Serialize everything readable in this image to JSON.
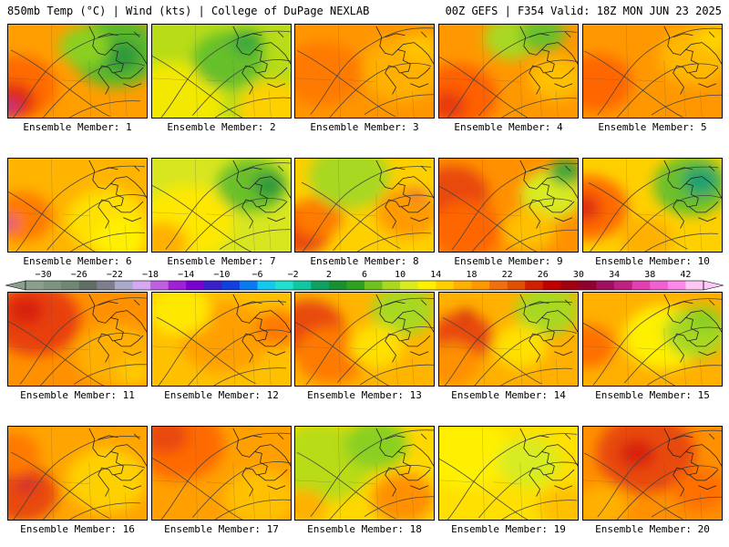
{
  "header": {
    "left": "850mb Temp (°C) | Wind (kts) | College of DuPage NEXLAB",
    "right": "00Z GEFS | F354 Valid: 18Z MON JUN 23 2025"
  },
  "colorbar": {
    "labels": [
      "−30",
      "−26",
      "−22",
      "−18",
      "−14",
      "−10",
      "−6",
      "−2",
      "2",
      "6",
      "10",
      "14",
      "18",
      "22",
      "26",
      "30",
      "34",
      "38",
      "42"
    ],
    "colors": [
      "#8aa08c",
      "#7c9480",
      "#6e8874",
      "#5f6e66",
      "#7e7e8e",
      "#a9a9c9",
      "#d6a8f0",
      "#c060e0",
      "#a020d8",
      "#7a00d0",
      "#3a20c8",
      "#1040e0",
      "#0a7af0",
      "#14c8f0",
      "#20e0d0",
      "#10c8a0",
      "#10a060",
      "#169030",
      "#30a020",
      "#70c020",
      "#a8d820",
      "#d8ec20",
      "#fff000",
      "#ffd000",
      "#ffb000",
      "#ff9800",
      "#f07010",
      "#e05000",
      "#d02000",
      "#c00000",
      "#a00010",
      "#900030",
      "#a01060",
      "#c02080",
      "#e040b0",
      "#f060d0",
      "#ff88e8",
      "#ffc8f4"
    ]
  },
  "members": [
    {
      "label": "Ensemble Member: 1",
      "base": "#ff9e00",
      "blobs": [
        [
          "#ff6a00",
          10,
          70,
          45
        ],
        [
          "#e02a10",
          5,
          85,
          25
        ],
        [
          "#a23aa0",
          2,
          92,
          8
        ],
        [
          "#5cb82a",
          120,
          30,
          50
        ],
        [
          "#2e9a3a",
          125,
          35,
          22
        ],
        [
          "#8ad020",
          85,
          25,
          28
        ]
      ]
    },
    {
      "label": "Ensemble Member: 2",
      "base": "#b8dc18",
      "blobs": [
        [
          "#f2e800",
          20,
          90,
          60
        ],
        [
          "#ffd000",
          135,
          95,
          40
        ],
        [
          "#66c02a",
          85,
          40,
          40
        ],
        [
          "#3da83a",
          105,
          20,
          18
        ]
      ]
    },
    {
      "label": "Ensemble Member: 3",
      "base": "#ff9600",
      "blobs": [
        [
          "#ff7a00",
          30,
          55,
          45
        ],
        [
          "#ffb000",
          120,
          50,
          45
        ],
        [
          "#ffc400",
          140,
          25,
          20
        ]
      ]
    },
    {
      "label": "Ensemble Member: 4",
      "base": "#ff9800",
      "blobs": [
        [
          "#ff6000",
          20,
          80,
          45
        ],
        [
          "#e63a10",
          10,
          90,
          20
        ],
        [
          "#a8d820",
          80,
          15,
          30
        ],
        [
          "#6ac02a",
          115,
          10,
          25
        ],
        [
          "#ffc000",
          130,
          60,
          30
        ]
      ]
    },
    {
      "label": "Ensemble Member: 5",
      "base": "#ff9800",
      "blobs": [
        [
          "#ff6600",
          15,
          65,
          40
        ],
        [
          "#ffb800",
          125,
          35,
          40
        ],
        [
          "#ffd200",
          145,
          15,
          20
        ]
      ]
    },
    {
      "label": "Ensemble Member: 6",
      "base": "#ffb400",
      "blobs": [
        [
          "#ff7a00",
          15,
          65,
          35
        ],
        [
          "#c040a0",
          2,
          72,
          8
        ],
        [
          "#ffe000",
          110,
          70,
          45
        ],
        [
          "#fff000",
          125,
          90,
          30
        ]
      ]
    },
    {
      "label": "Ensemble Member: 7",
      "base": "#d8e620",
      "blobs": [
        [
          "#ffe800",
          40,
          70,
          50
        ],
        [
          "#ffb000",
          10,
          95,
          30
        ],
        [
          "#6ac02a",
          110,
          30,
          38
        ],
        [
          "#2e9a3a",
          130,
          30,
          18
        ]
      ]
    },
    {
      "label": "Ensemble Member: 8",
      "base": "#ffd000",
      "blobs": [
        [
          "#e84a10",
          5,
          80,
          35
        ],
        [
          "#ff7a00",
          25,
          65,
          28
        ],
        [
          "#a8d820",
          60,
          20,
          45
        ],
        [
          "#ff9a00",
          125,
          60,
          35
        ],
        [
          "#cf1a48",
          135,
          40,
          6
        ]
      ]
    },
    {
      "label": "Ensemble Member: 9",
      "base": "#ff9000",
      "blobs": [
        [
          "#e84a10",
          15,
          40,
          40
        ],
        [
          "#ff6600",
          30,
          80,
          40
        ],
        [
          "#d8ea20",
          125,
          40,
          35
        ],
        [
          "#3da83a",
          140,
          15,
          18
        ],
        [
          "#ffc000",
          100,
          80,
          30
        ]
      ]
    },
    {
      "label": "Ensemble Member: 10",
      "base": "#ffd000",
      "blobs": [
        [
          "#ff6a00",
          5,
          55,
          45
        ],
        [
          "#e03010",
          0,
          55,
          20
        ],
        [
          "#6ac02a",
          120,
          30,
          42
        ],
        [
          "#1aa070",
          130,
          25,
          20
        ],
        [
          "#ffb000",
          70,
          90,
          30
        ]
      ]
    },
    {
      "label": "Ensemble Member: 11",
      "base": "#ff9000",
      "blobs": [
        [
          "#e84010",
          30,
          30,
          50
        ],
        [
          "#d82010",
          20,
          20,
          20
        ],
        [
          "#ffb000",
          120,
          70,
          45
        ],
        [
          "#ffc800",
          140,
          90,
          20
        ]
      ]
    },
    {
      "label": "Ensemble Member: 12",
      "base": "#ffc000",
      "blobs": [
        [
          "#ffa000",
          80,
          50,
          50
        ],
        [
          "#ffe800",
          30,
          20,
          35
        ],
        [
          "#ff7a00",
          140,
          40,
          25
        ]
      ]
    },
    {
      "label": "Ensemble Member: 13",
      "base": "#ffb400",
      "blobs": [
        [
          "#e84a10",
          15,
          40,
          40
        ],
        [
          "#ff7a00",
          40,
          70,
          40
        ],
        [
          "#a8d820",
          120,
          20,
          35
        ],
        [
          "#ffe000",
          90,
          60,
          30
        ]
      ]
    },
    {
      "label": "Ensemble Member: 14",
      "base": "#ffb000",
      "blobs": [
        [
          "#e84a10",
          25,
          50,
          35
        ],
        [
          "#d02010",
          30,
          25,
          8
        ],
        [
          "#ff9000",
          15,
          80,
          30
        ],
        [
          "#a8d820",
          120,
          20,
          35
        ],
        [
          "#ffe000",
          90,
          60,
          30
        ]
      ]
    },
    {
      "label": "Ensemble Member: 15",
      "base": "#ffb000",
      "blobs": [
        [
          "#ff7000",
          5,
          60,
          30
        ],
        [
          "#fff000",
          90,
          50,
          45
        ],
        [
          "#a8d820",
          125,
          45,
          35
        ],
        [
          "#8ad020",
          135,
          30,
          18
        ]
      ]
    },
    {
      "label": "Ensemble Member: 16",
      "base": "#ffa400",
      "blobs": [
        [
          "#e84a10",
          15,
          75,
          40
        ],
        [
          "#d02030",
          20,
          65,
          10
        ],
        [
          "#ff7a00",
          5,
          30,
          30
        ],
        [
          "#ffd000",
          110,
          60,
          45
        ]
      ]
    },
    {
      "label": "Ensemble Member: 17",
      "base": "#ffa000",
      "blobs": [
        [
          "#ff6a00",
          30,
          20,
          50
        ],
        [
          "#e84a10",
          15,
          10,
          25
        ],
        [
          "#ffc000",
          120,
          80,
          40
        ]
      ]
    },
    {
      "label": "Ensemble Member: 18",
      "base": "#ffd800",
      "blobs": [
        [
          "#b8dc18",
          30,
          40,
          55
        ],
        [
          "#8ad020",
          90,
          20,
          35
        ],
        [
          "#ff9000",
          120,
          80,
          35
        ],
        [
          "#ffb000",
          10,
          90,
          25
        ]
      ]
    },
    {
      "label": "Ensemble Member: 19",
      "base": "#ffe000",
      "blobs": [
        [
          "#fff000",
          30,
          30,
          50
        ],
        [
          "#d8ec20",
          100,
          40,
          35
        ],
        [
          "#ffc000",
          140,
          90,
          30
        ]
      ]
    },
    {
      "label": "Ensemble Member: 20",
      "base": "#ff9000",
      "blobs": [
        [
          "#e84a10",
          70,
          30,
          55
        ],
        [
          "#d82010",
          60,
          30,
          20
        ],
        [
          "#ffb000",
          20,
          90,
          30
        ],
        [
          "#ff7000",
          130,
          70,
          30
        ]
      ]
    }
  ]
}
